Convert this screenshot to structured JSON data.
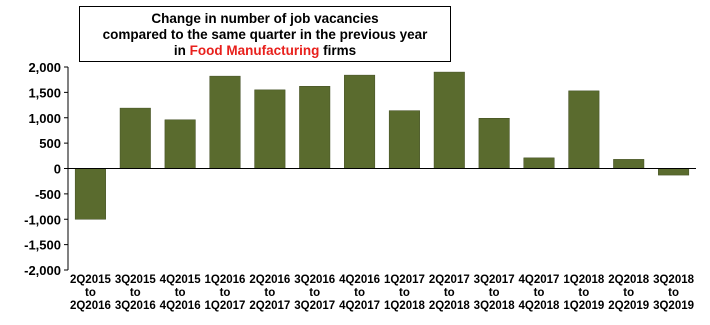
{
  "chart_data": {
    "type": "bar",
    "title": {
      "line1": "Change in number of job vacancies",
      "line2": "compared to the same quarter in the previous year",
      "line3_prefix": "in ",
      "line3_highlight": "Food Manufacturing",
      "line3_suffix": " firms",
      "highlight_color": "#e8201c"
    },
    "categories": [
      [
        "2Q2015",
        "to",
        "2Q2016"
      ],
      [
        "3Q2015",
        "to",
        "3Q2016"
      ],
      [
        "4Q2015",
        "to",
        "4Q2016"
      ],
      [
        "1Q2016",
        "to",
        "1Q2017"
      ],
      [
        "2Q2016",
        "to",
        "2Q2017"
      ],
      [
        "3Q2016",
        "to",
        "3Q2017"
      ],
      [
        "4Q2016",
        "to",
        "4Q2017"
      ],
      [
        "1Q2017",
        "to",
        "1Q2018"
      ],
      [
        "2Q2017",
        "to",
        "2Q2018"
      ],
      [
        "3Q2017",
        "to",
        "3Q2018"
      ],
      [
        "4Q2017",
        "to",
        "4Q2018"
      ],
      [
        "1Q2018",
        "to",
        "1Q2019"
      ],
      [
        "2Q2018",
        "to",
        "2Q2019"
      ],
      [
        "3Q2018",
        "to",
        "3Q2019"
      ]
    ],
    "values": [
      -1000,
      1190,
      960,
      1820,
      1550,
      1620,
      1840,
      1140,
      1900,
      990,
      210,
      1530,
      180,
      -130
    ],
    "ylim": [
      -2000,
      2000
    ],
    "yticks": [
      -2000,
      -1500,
      -1000,
      -500,
      0,
      500,
      1000,
      1500,
      2000
    ],
    "ytick_labels": [
      "-2,000",
      "-1,500",
      "-1,000",
      "-500",
      "0",
      "500",
      "1,000",
      "1,500",
      "2,000"
    ],
    "bar_color": "#5a6b2e",
    "grid": false,
    "legend": "none"
  }
}
